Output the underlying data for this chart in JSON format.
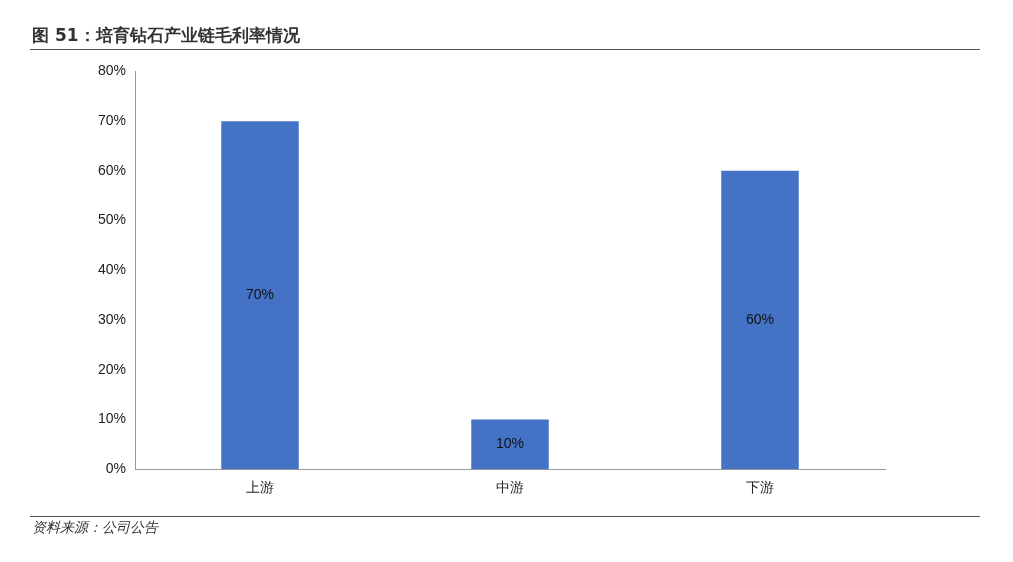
{
  "chart_data": {
    "type": "bar",
    "title": "图 51：培育钻石产业链毛利率情况",
    "categories": [
      "上游",
      "中游",
      "下游"
    ],
    "values": [
      70,
      10,
      60
    ],
    "value_labels": [
      "70%",
      "10%",
      "60%"
    ],
    "color": "#4472c4",
    "ylim": [
      0,
      80
    ],
    "yticks": [
      {
        "value": 0,
        "label": "0%"
      },
      {
        "value": 10,
        "label": "10%"
      },
      {
        "value": 20,
        "label": "20%"
      },
      {
        "value": 30,
        "label": "30%"
      },
      {
        "value": 40,
        "label": "40%"
      },
      {
        "value": 50,
        "label": "50%"
      },
      {
        "value": 60,
        "label": "60%"
      },
      {
        "value": 70,
        "label": "70%"
      },
      {
        "value": 80,
        "label": "80%"
      }
    ],
    "annotations": [
      "资料来源：公司公告"
    ]
  }
}
